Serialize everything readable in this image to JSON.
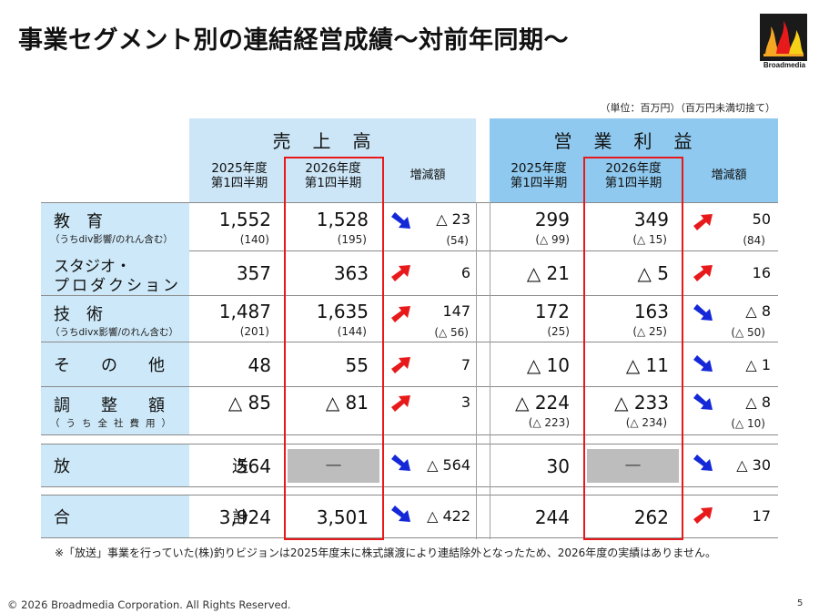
{
  "title": "事業セグメント別の連結経営成績～対前年同期～",
  "logo_text": "Broadmedia",
  "unit_note": "（単位：百万円）（百万円未満切捨て）",
  "sales_header": "売上高",
  "op_header": "営業利益",
  "columns": {
    "prev": [
      "2025年度",
      "第1四半期"
    ],
    "curr": [
      "2026年度",
      "第1四半期"
    ],
    "diff": "増減額"
  },
  "rows": [
    {
      "label": "教　育",
      "sub": "（うちdiv影響/のれん含む）",
      "sales_prev": "1,552",
      "sales_prev_sub": "(140)",
      "sales_curr": "1,528",
      "sales_curr_sub": "(195)",
      "sales_diff": "△ 23",
      "sales_diff_sub": "(54)",
      "sales_dir": "down",
      "op_prev": "299",
      "op_prev_sub": "(△ 99)",
      "op_curr": "349",
      "op_curr_sub": "(△ 15)",
      "op_diff": "50",
      "op_diff_sub": "(84)",
      "op_dir": "up"
    },
    {
      "label": "スタジオ・",
      "label2": "プロダクション",
      "sales_prev": "357",
      "sales_curr": "363",
      "sales_diff": "6",
      "sales_dir": "up",
      "op_prev": "△ 21",
      "op_curr": "△ 5",
      "op_diff": "16",
      "op_dir": "up"
    },
    {
      "label": "技　術",
      "sub": "（うちdivx影響/のれん含む）",
      "sales_prev": "1,487",
      "sales_prev_sub": "(201)",
      "sales_curr": "1,635",
      "sales_curr_sub": "(144)",
      "sales_diff": "147",
      "sales_diff_sub": "(△ 56)",
      "sales_dir": "up",
      "op_prev": "172",
      "op_prev_sub": "(25)",
      "op_curr": "163",
      "op_curr_sub": "(△ 25)",
      "op_diff": "△ 8",
      "op_diff_sub": "(△ 50)",
      "op_dir": "down"
    },
    {
      "label": "その他",
      "sales_prev": "48",
      "sales_curr": "55",
      "sales_diff": "7",
      "sales_dir": "up",
      "op_prev": "△ 10",
      "op_curr": "△ 11",
      "op_diff": "△ 1",
      "op_dir": "down"
    },
    {
      "label": "調整額",
      "sub": "（うち全社費用）",
      "sales_prev": "△ 85",
      "sales_curr": "△ 81",
      "sales_diff": "3",
      "sales_dir": "up",
      "op_prev": "△ 224",
      "op_prev_sub": "(△ 223)",
      "op_curr": "△ 233",
      "op_curr_sub": "(△ 234)",
      "op_diff": "△ 8",
      "op_diff_sub": "(△ 10)",
      "op_dir": "down"
    }
  ],
  "broadcast": {
    "label": "放　送",
    "sales_prev": "564",
    "sales_curr": "—",
    "sales_diff": "△ 564",
    "sales_dir": "down",
    "op_prev": "30",
    "op_curr": "—",
    "op_diff": "△ 30",
    "op_dir": "down"
  },
  "total": {
    "label": "合　計",
    "sales_prev": "3,924",
    "sales_curr": "3,501",
    "sales_diff": "△ 422",
    "sales_dir": "down",
    "op_prev": "244",
    "op_curr": "262",
    "op_diff": "17",
    "op_dir": "up"
  },
  "note": "※「放送」事業を行っていた(株)釣りビジョンは2025年度末に株式譲渡により連結除外となったため、2026年度の実績はありません。",
  "copyright": "© 2026 Broadmedia Corporation. All Rights Reserved.",
  "page_number": "5",
  "colors": {
    "up_arrow": "#e8191a",
    "down_arrow": "#1428d8",
    "highlight_box": "#e8191a",
    "sales_header_bg": "#cce6f7",
    "op_header_bg": "#8fc9ef"
  }
}
